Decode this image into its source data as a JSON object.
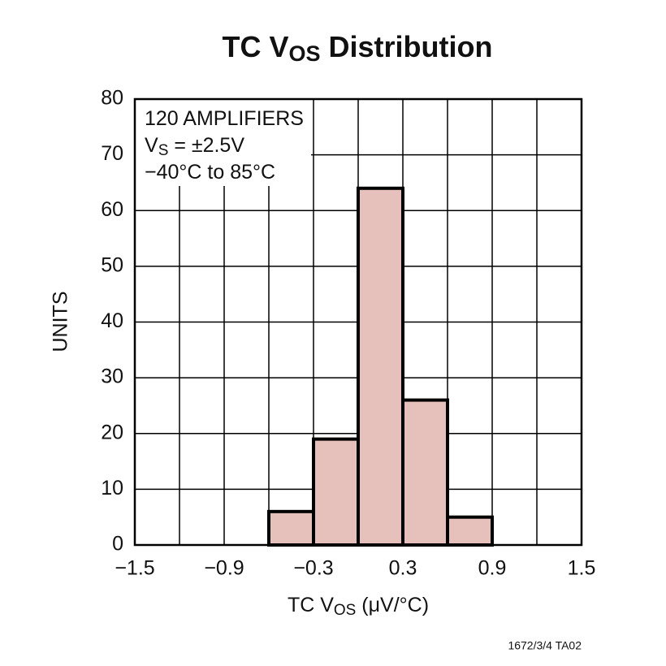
{
  "chart_data": {
    "type": "histogram",
    "title": [
      "TC V",
      "OS",
      " Distribution"
    ],
    "xlabel": [
      "TC V",
      "OS",
      " (μV/°C)"
    ],
    "ylabel": "UNITS",
    "annotations": [
      [
        "120 AMPLIFIERS"
      ],
      [
        "V",
        "S",
        " = ±2.5V"
      ],
      [
        "−40°C to 85°C"
      ]
    ],
    "footnote": "1672/3/4 TA02",
    "bins": [
      -0.6,
      -0.3,
      0,
      0.3,
      0.6,
      0.9
    ],
    "counts": [
      6,
      19,
      64,
      26,
      5
    ],
    "color": "#e6c1bb",
    "edgecolor": "#000000",
    "xlim": [
      -1.5,
      1.5
    ],
    "ylim": [
      0,
      80
    ],
    "xticks": [
      {
        "value": -1.5,
        "label": "−1.5"
      },
      {
        "value": -0.9,
        "label": "−0.9"
      },
      {
        "value": -0.3,
        "label": "−0.3"
      },
      0.3,
      0.9,
      1.5
    ],
    "xgrid": [
      -1.2,
      -0.6,
      0,
      0.6,
      1.2
    ],
    "yticks": [
      0,
      10,
      20,
      30,
      40,
      50,
      60,
      70,
      80
    ],
    "grid": true
  }
}
